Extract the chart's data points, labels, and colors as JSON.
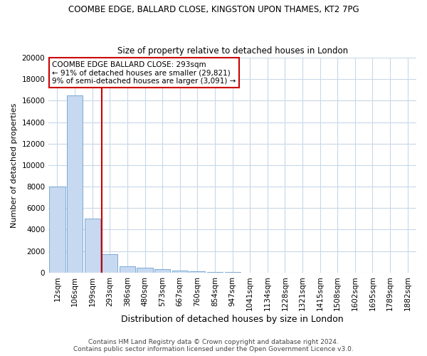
{
  "title": "COOMBE EDGE, BALLARD CLOSE, KINGSTON UPON THAMES, KT2 7PG",
  "subtitle": "Size of property relative to detached houses in London",
  "xlabel": "Distribution of detached houses by size in London",
  "ylabel": "Number of detached properties",
  "categories": [
    "12sqm",
    "106sqm",
    "199sqm",
    "293sqm",
    "386sqm",
    "480sqm",
    "573sqm",
    "667sqm",
    "760sqm",
    "854sqm",
    "947sqm",
    "1041sqm",
    "1134sqm",
    "1228sqm",
    "1321sqm",
    "1415sqm",
    "1508sqm",
    "1602sqm",
    "1695sqm",
    "1789sqm",
    "1882sqm"
  ],
  "values": [
    8000,
    16500,
    5000,
    1700,
    600,
    420,
    300,
    200,
    140,
    70,
    35,
    18,
    10,
    7,
    4,
    3,
    2,
    2,
    1,
    1,
    1
  ],
  "bar_color": "#c7d9f0",
  "bar_edge_color": "#7aaad4",
  "vline_color": "#cc0000",
  "annotation_title": "COOMBE EDGE BALLARD CLOSE: 293sqm",
  "annotation_line1": "← 91% of detached houses are smaller (29,821)",
  "annotation_line2": "9% of semi-detached houses are larger (3,091) →",
  "annotation_box_color": "#cc0000",
  "annotation_bg": "#ffffff",
  "ylim": [
    0,
    20000
  ],
  "yticks": [
    0,
    2000,
    4000,
    6000,
    8000,
    10000,
    12000,
    14000,
    16000,
    18000,
    20000
  ],
  "footer1": "Contains HM Land Registry data © Crown copyright and database right 2024.",
  "footer2": "Contains public sector information licensed under the Open Government Licence v3.0.",
  "bg_color": "#ffffff",
  "grid_color": "#c8d8e8",
  "title_fontsize": 8.5,
  "subtitle_fontsize": 8.5,
  "ylabel_fontsize": 8,
  "xlabel_fontsize": 9,
  "tick_fontsize": 7.5,
  "ann_fontsize": 7.5,
  "footer_fontsize": 6.5
}
